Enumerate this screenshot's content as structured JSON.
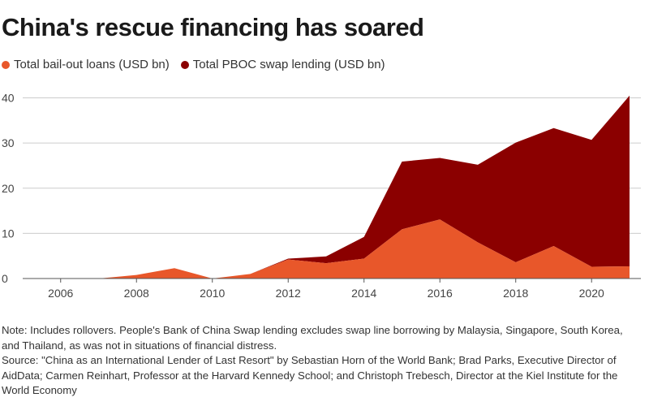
{
  "title": "China's rescue financing has soared",
  "legend": [
    {
      "label": "Total bail-out loans (USD bn)",
      "color": "#e8572a"
    },
    {
      "label": "Total PBOC swap lending (USD bn)",
      "color": "#8b0000"
    }
  ],
  "note": "Note: Includes rollovers. People's Bank of China Swap lending excludes swap line borrowing by Malaysia, Singapore, South Korea, and Thailand, as was not in situations of financial distress.",
  "source": "Source: \"China as an International Lender of Last Resort\" by Sebastian Horn of the World Bank; Brad Parks, Executive Director of AidData; Carmen Reinhart, Professor at the Harvard Kennedy School; and Christoph Trebesch, Director at the Kiel Institute for the World Economy",
  "chart_data": {
    "type": "area",
    "stacked": true,
    "title": "China's rescue financing has soared",
    "x": [
      2007,
      2008,
      2009,
      2010,
      2011,
      2012,
      2013,
      2014,
      2015,
      2016,
      2017,
      2018,
      2019,
      2020,
      2021
    ],
    "series": [
      {
        "name": "Total bail-out loans (USD bn)",
        "color": "#e8572a",
        "values": [
          0,
          0.8,
          2.3,
          0,
          1.0,
          4.2,
          3.4,
          4.4,
          10.9,
          13.1,
          8.0,
          3.6,
          7.2,
          2.6,
          2.7
        ]
      },
      {
        "name": "Total PBOC swap lending (USD bn)",
        "color": "#8b0000",
        "values": [
          0,
          0,
          0,
          0,
          0,
          0.2,
          1.5,
          4.8,
          15.0,
          13.6,
          17.2,
          26.5,
          26.1,
          28.1,
          37.8
        ]
      }
    ],
    "xticks": [
      2006,
      2008,
      2010,
      2012,
      2014,
      2016,
      2018,
      2020
    ],
    "yticks": [
      0,
      10,
      20,
      30,
      40
    ],
    "xlim": [
      2005,
      2021.3
    ],
    "ylim": [
      0,
      41
    ],
    "grid": true,
    "legend_position": "top-left"
  }
}
